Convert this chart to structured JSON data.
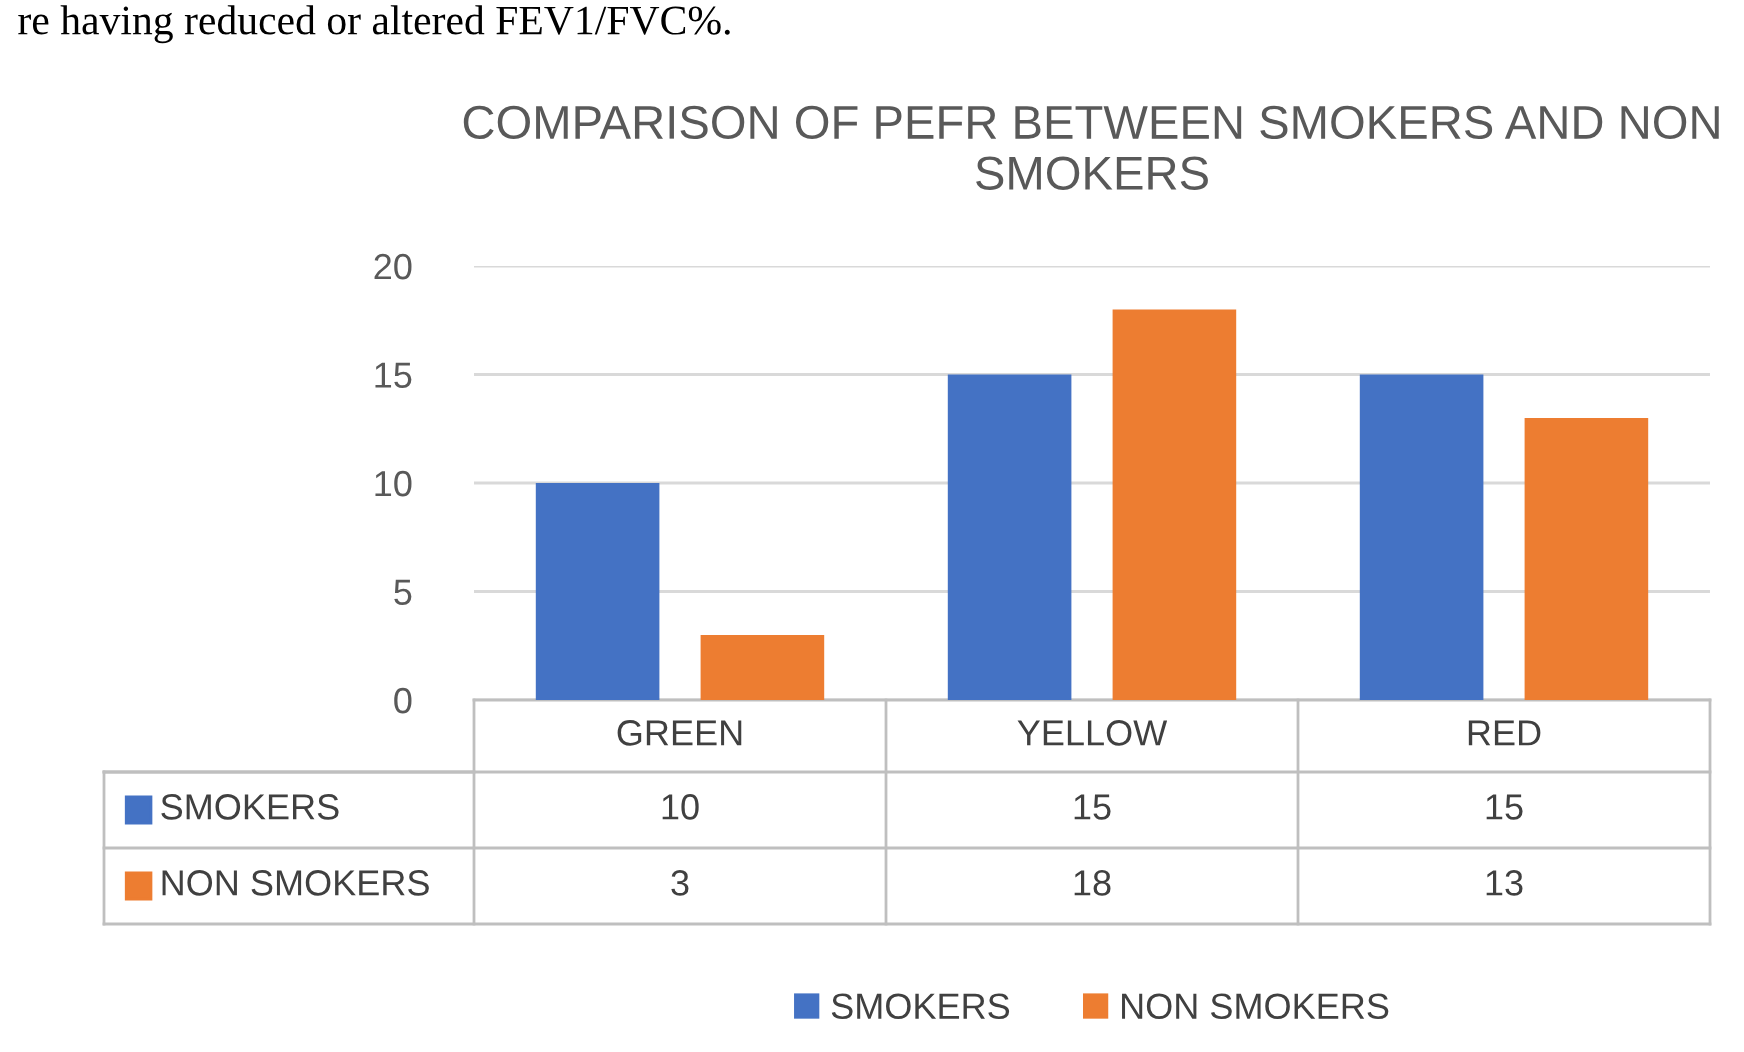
{
  "chart_data": {
    "type": "bar",
    "title": "COMPARISON OF PEFR BETWEEN SMOKERS AND NON SMOKERS",
    "annotations": [
      "re having reduced or altered FEV1/FVC%."
    ],
    "categories": [
      "GREEN",
      "YELLOW",
      "RED"
    ],
    "series": [
      {
        "name": "SMOKERS",
        "color": "#4472c4",
        "values": [
          10,
          15,
          15
        ]
      },
      {
        "name": "NON SMOKERS",
        "color": "#ed7d31",
        "values": [
          3,
          18,
          13
        ]
      }
    ],
    "ylim": [
      0,
      20
    ],
    "yticks": [
      0,
      5,
      10,
      15,
      20
    ],
    "grid": "y",
    "legend": "bottom",
    "data_labels": true
  }
}
